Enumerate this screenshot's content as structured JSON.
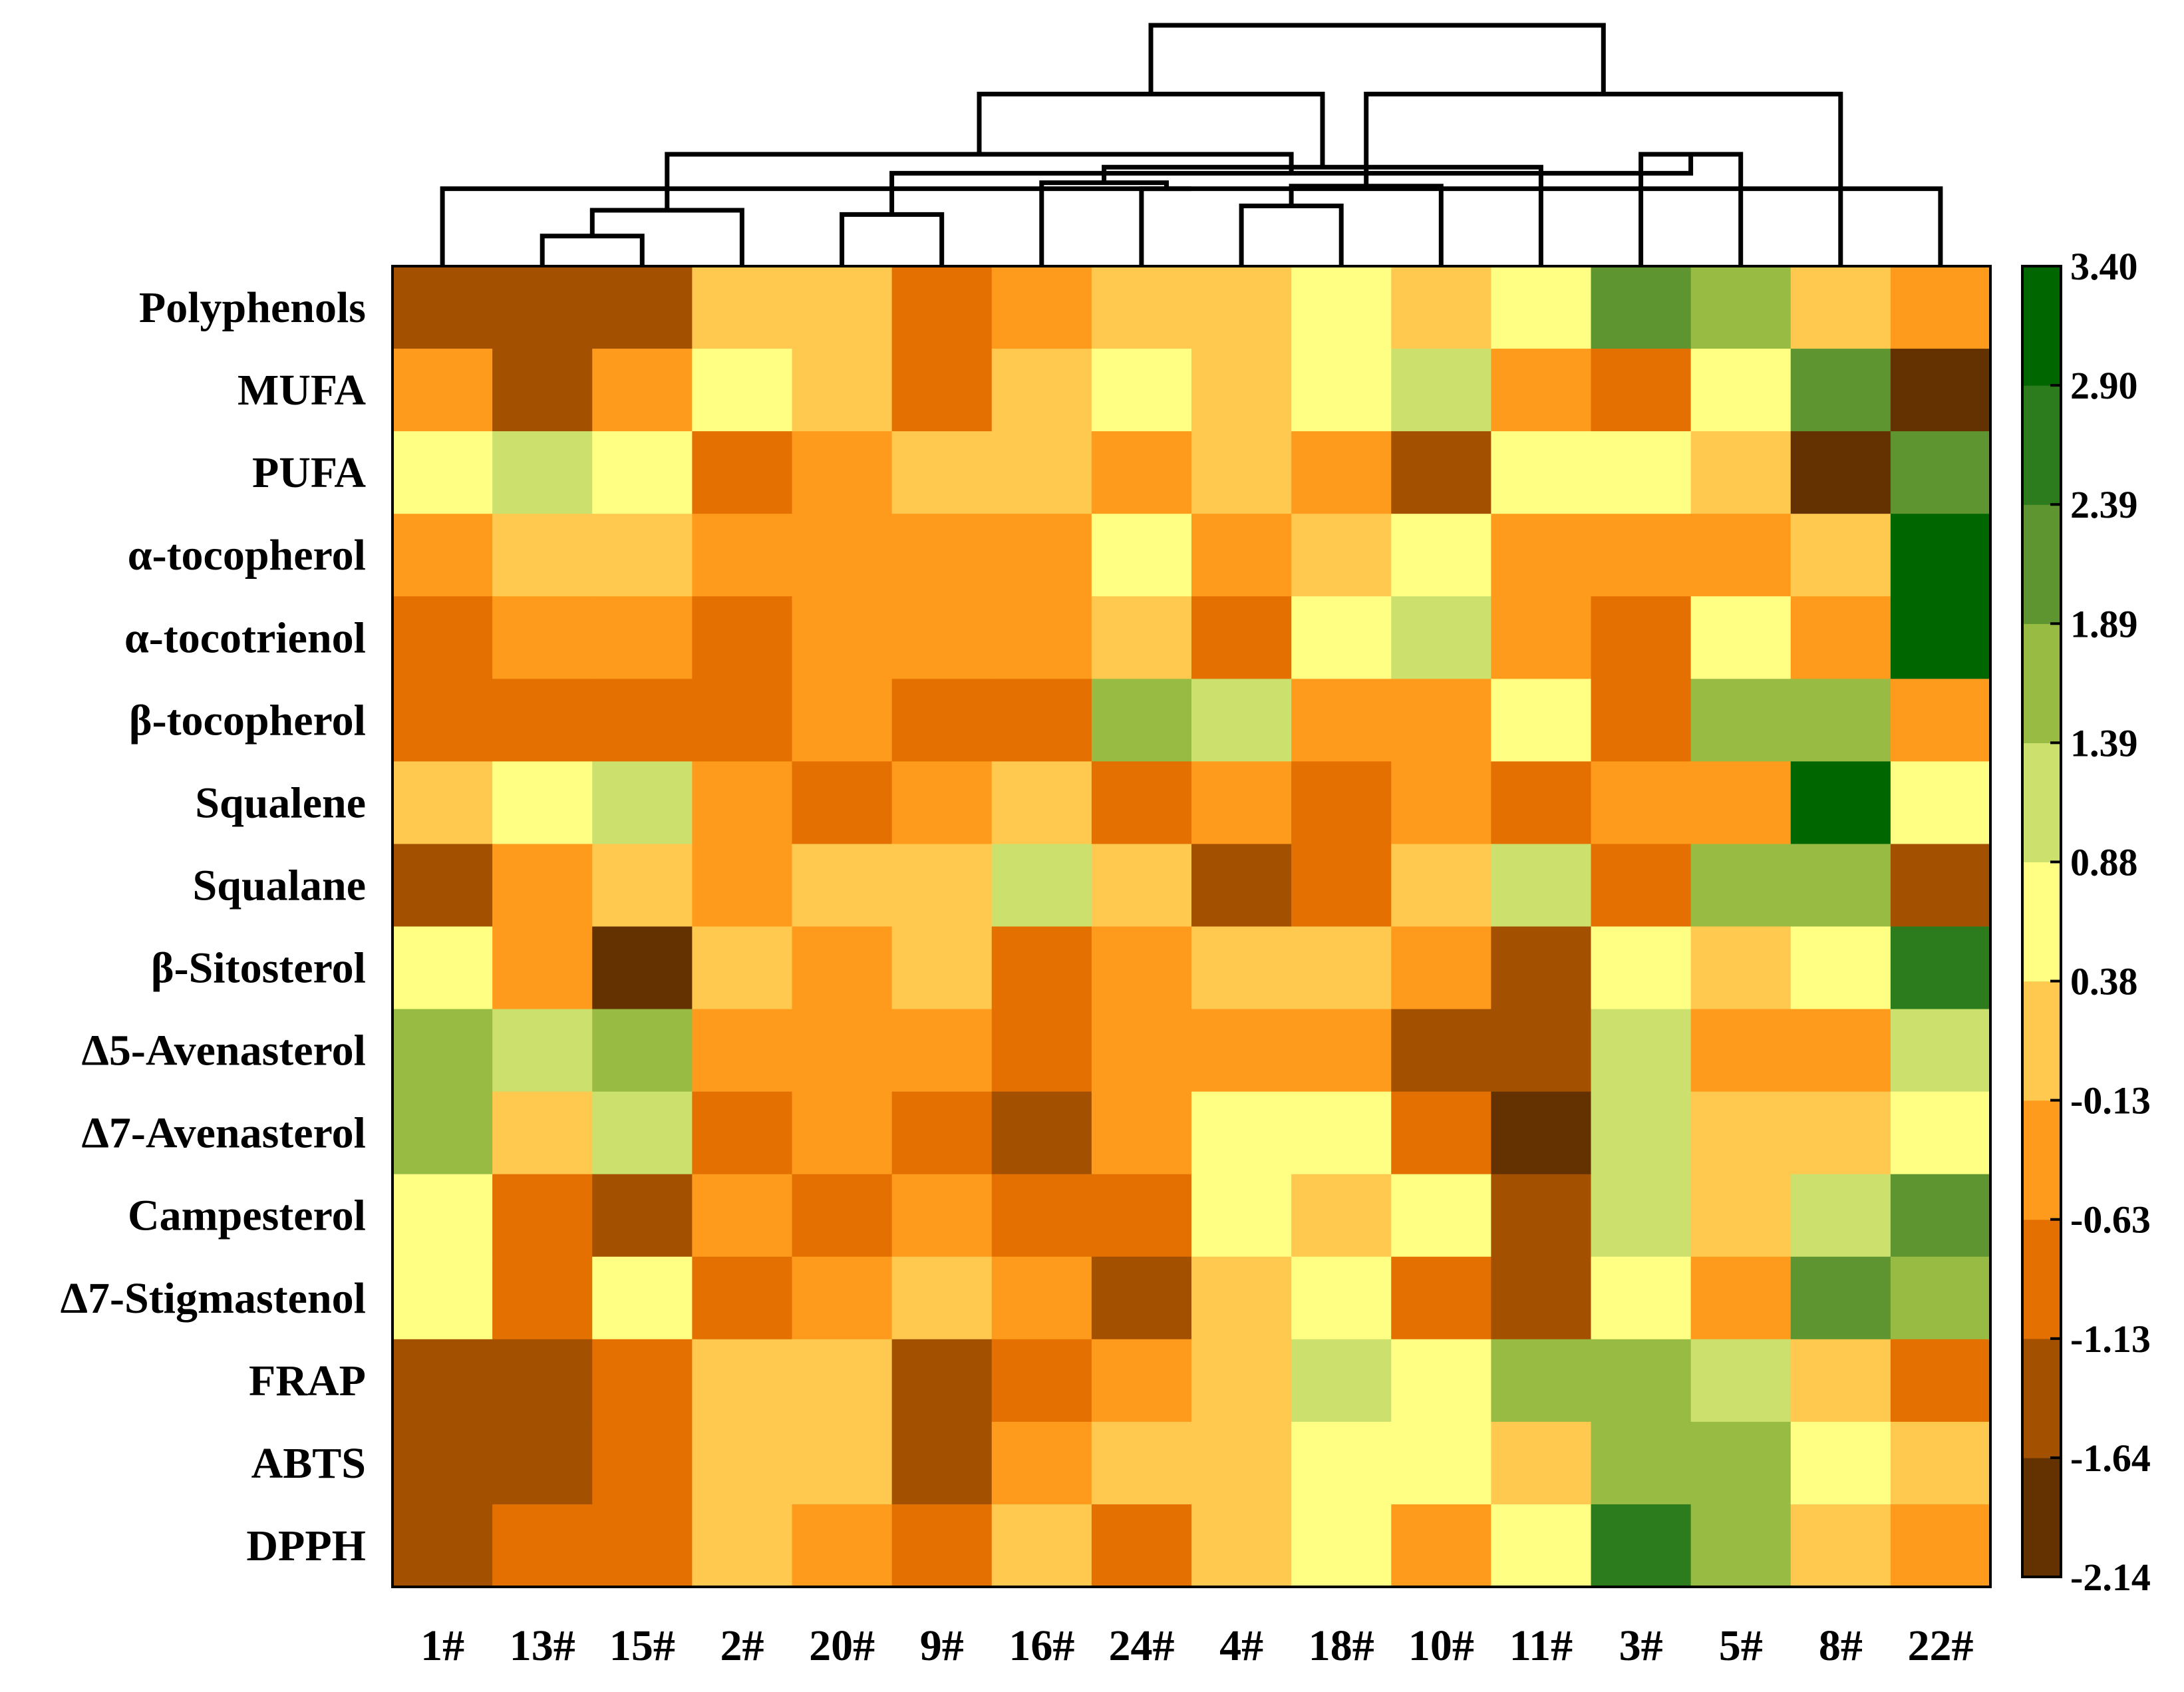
{
  "chart_data": {
    "type": "heatmap",
    "title": "",
    "xlabel": "",
    "ylabel": "",
    "columns": [
      "1#",
      "13#",
      "15#",
      "2#",
      "20#",
      "9#",
      "16#",
      "24#",
      "4#",
      "18#",
      "10#",
      "11#",
      "3#",
      "5#",
      "8#",
      "22#"
    ],
    "rows": [
      "Polyphenols",
      "MUFA",
      "PUFA",
      "α-tocopherol",
      "α-tocotrienol",
      "β-tocopherol",
      "Squalene",
      "Squalane",
      "β-Sitosterol",
      "Δ5-Avenasterol",
      "Δ7-Avenasterol",
      "Campesterol",
      "Δ7-Stigmastenol",
      "FRAP",
      "ABTS",
      "DPPH"
    ],
    "values": [
      [
        -1.4,
        -1.4,
        -1.4,
        0.1,
        0.1,
        -0.9,
        -0.4,
        0.1,
        0.1,
        0.6,
        0.1,
        0.6,
        2.1,
        1.6,
        0.1,
        -0.4
      ],
      [
        -0.4,
        -1.4,
        -0.4,
        0.6,
        0.1,
        -0.9,
        0.1,
        0.6,
        0.1,
        0.6,
        1.1,
        -0.4,
        -0.9,
        0.6,
        2.1,
        -1.9
      ],
      [
        0.6,
        1.1,
        0.6,
        -0.9,
        -0.4,
        0.1,
        0.1,
        -0.4,
        0.1,
        -0.4,
        -1.4,
        0.6,
        0.6,
        0.1,
        -1.9,
        2.1
      ],
      [
        -0.4,
        0.1,
        0.1,
        -0.4,
        -0.4,
        -0.4,
        -0.4,
        0.6,
        -0.4,
        0.1,
        0.6,
        -0.4,
        -0.4,
        -0.4,
        0.1,
        3.1
      ],
      [
        -0.9,
        -0.4,
        -0.4,
        -0.9,
        -0.4,
        -0.4,
        -0.4,
        0.1,
        -0.9,
        0.6,
        1.1,
        -0.4,
        -0.9,
        0.6,
        -0.4,
        3.1
      ],
      [
        -0.9,
        -0.9,
        -0.9,
        -0.9,
        -0.4,
        -0.9,
        -0.9,
        1.6,
        1.1,
        -0.4,
        -0.4,
        0.6,
        -0.9,
        1.6,
        1.6,
        -0.4
      ],
      [
        0.1,
        0.6,
        1.1,
        -0.4,
        -0.9,
        -0.4,
        0.1,
        -0.9,
        -0.4,
        -0.9,
        -0.4,
        -0.9,
        -0.4,
        -0.4,
        3.1,
        0.6
      ],
      [
        -1.4,
        -0.4,
        0.1,
        -0.4,
        0.1,
        0.1,
        1.1,
        0.1,
        -1.4,
        -0.9,
        0.1,
        1.1,
        -0.9,
        1.6,
        1.6,
        -1.4
      ],
      [
        0.6,
        -0.4,
        -1.9,
        0.1,
        -0.4,
        0.1,
        -0.9,
        -0.4,
        0.1,
        0.1,
        -0.4,
        -1.4,
        0.6,
        0.1,
        0.6,
        2.6
      ],
      [
        1.6,
        1.1,
        1.6,
        -0.4,
        -0.4,
        -0.4,
        -0.9,
        -0.4,
        -0.4,
        -0.4,
        -1.4,
        -1.4,
        1.1,
        -0.4,
        -0.4,
        1.1
      ],
      [
        1.6,
        0.1,
        1.1,
        -0.9,
        -0.4,
        -0.9,
        -1.4,
        -0.4,
        0.6,
        0.6,
        -0.9,
        -1.9,
        1.1,
        0.1,
        0.1,
        0.6
      ],
      [
        0.6,
        -0.9,
        -1.4,
        -0.4,
        -0.9,
        -0.4,
        -0.9,
        -0.9,
        0.6,
        0.1,
        0.6,
        -1.4,
        1.1,
        0.1,
        1.1,
        2.1
      ],
      [
        0.6,
        -0.9,
        0.6,
        -0.9,
        -0.4,
        0.1,
        -0.4,
        -1.4,
        0.1,
        0.6,
        -0.9,
        -1.4,
        0.6,
        -0.4,
        2.1,
        1.6
      ],
      [
        -1.4,
        -1.4,
        -0.9,
        0.1,
        0.1,
        -1.4,
        -0.9,
        -0.4,
        0.1,
        1.1,
        0.6,
        1.6,
        1.6,
        1.1,
        0.1,
        -0.9
      ],
      [
        -1.4,
        -1.4,
        -0.9,
        0.1,
        0.1,
        -1.4,
        -0.4,
        0.1,
        0.1,
        0.6,
        0.6,
        0.1,
        1.6,
        1.6,
        0.6,
        0.1
      ],
      [
        -1.4,
        -0.9,
        -0.9,
        0.1,
        -0.4,
        -0.9,
        0.1,
        -0.9,
        0.1,
        0.6,
        -0.4,
        0.6,
        2.6,
        1.6,
        0.1,
        -0.4
      ]
    ],
    "colorbar": {
      "ticks": [
        "3.40",
        "2.90",
        "2.39",
        "1.89",
        "1.39",
        "0.88",
        "0.38",
        "-0.13",
        "-0.63",
        "-1.13",
        "-1.64",
        "-2.14"
      ],
      "range": [
        -2.14,
        3.4
      ],
      "colors": [
        "#643200",
        "#a35100",
        "#e37000",
        "#ff9b1c",
        "#ffc84f",
        "#ffff83",
        "#cce06d",
        "#98bb43",
        "#5e9530",
        "#2c7b1d",
        "#006600"
      ]
    },
    "dendrogram": {
      "merges": [
        [
          2,
          3,
          0.35
        ],
        [
          5,
          6,
          0.6
        ],
        [
          4,
          17,
          0.65
        ],
        [
          1,
          16,
          0.9
        ],
        [
          9,
          10,
          0.7
        ],
        [
          8,
          20,
          0.9
        ],
        [
          11,
          21,
          0.93
        ],
        [
          13,
          14,
          1.3
        ],
        [
          7,
          22,
          0.97
        ],
        [
          18,
          24,
          1.08
        ],
        [
          12,
          25,
          1.15
        ],
        [
          19,
          26,
          1.3
        ],
        [
          15,
          23,
          2.0
        ],
        [
          27,
          28,
          2.0
        ],
        [
          29,
          30,
          2.8
        ]
      ],
      "order": [
        1,
        2,
        3,
        4,
        5,
        6,
        7,
        8,
        9,
        10,
        11,
        12,
        13,
        14,
        15,
        16
      ]
    }
  }
}
